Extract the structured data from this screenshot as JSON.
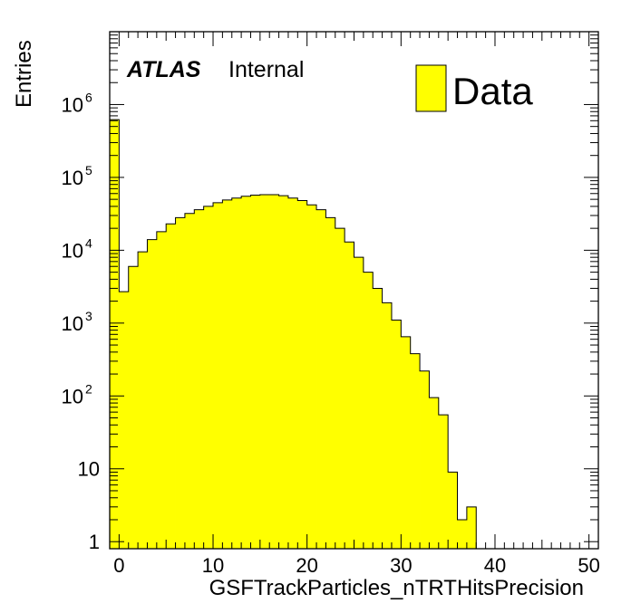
{
  "chart_data": {
    "type": "bar",
    "subtype": "histogram",
    "title": "",
    "xlabel": "GSFTrackParticles_nTRTHitsPrecision",
    "ylabel": "Entries",
    "xlim": [
      -1,
      51
    ],
    "ylim": [
      0.8,
      10000000
    ],
    "yscale": "log",
    "grid": false,
    "legend": {
      "position": "top-right",
      "entries": [
        {
          "label": "Data",
          "color": "#ffff00"
        }
      ]
    },
    "annotations": {
      "experiment": "ATLAS",
      "status": "Internal"
    },
    "x_ticks": [
      {
        "value": 0,
        "label": "0"
      },
      {
        "value": 10,
        "label": "10"
      },
      {
        "value": 20,
        "label": "20"
      },
      {
        "value": 30,
        "label": "30"
      },
      {
        "value": 40,
        "label": "40"
      },
      {
        "value": 50,
        "label": "50"
      }
    ],
    "y_ticks": [
      {
        "value": 1,
        "label": "1"
      },
      {
        "value": 10,
        "label": "10"
      },
      {
        "value": 100,
        "base": "10",
        "exp": "2"
      },
      {
        "value": 1000,
        "base": "10",
        "exp": "3"
      },
      {
        "value": 10000,
        "base": "10",
        "exp": "4"
      },
      {
        "value": 100000,
        "base": "10",
        "exp": "5"
      },
      {
        "value": 1000000,
        "base": "10",
        "exp": "6"
      }
    ],
    "series": [
      {
        "name": "Data",
        "color": "#ffff00",
        "bin_width": 1,
        "bin_low": [
          -1,
          0,
          1,
          2,
          3,
          4,
          5,
          6,
          7,
          8,
          9,
          10,
          11,
          12,
          13,
          14,
          15,
          16,
          17,
          18,
          19,
          20,
          21,
          22,
          23,
          24,
          25,
          26,
          27,
          28,
          29,
          30,
          31,
          32,
          33,
          34,
          35,
          36,
          37
        ],
        "values": [
          620000,
          2700,
          6000,
          9500,
          14000,
          18000,
          23000,
          28000,
          32000,
          36000,
          40000,
          45000,
          49000,
          52000,
          55000,
          57000,
          58000,
          58000,
          56000,
          52000,
          48000,
          42000,
          36000,
          28000,
          20000,
          13000,
          8000,
          5000,
          3000,
          1900,
          1100,
          650,
          380,
          220,
          95,
          55,
          9,
          2,
          3
        ]
      }
    ]
  }
}
